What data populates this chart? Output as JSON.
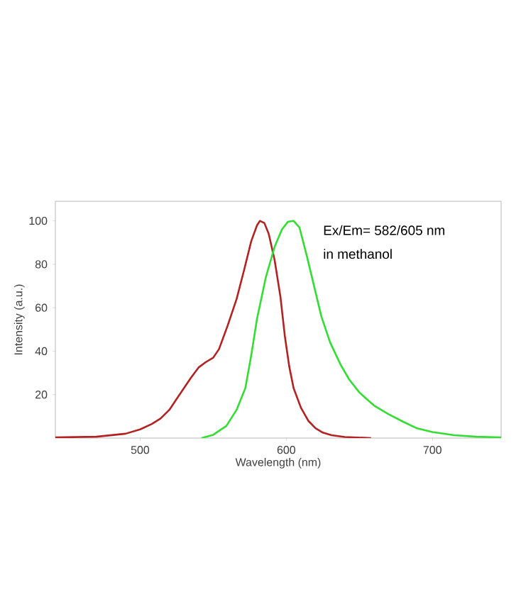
{
  "chart_data": {
    "type": "line",
    "xlabel": "Wavelength (nm)",
    "ylabel": "Intensity (a.u.)",
    "annotations": [
      "Ex/Em= 582/605 nm",
      "in methanol"
    ],
    "xlim": [
      442,
      747
    ],
    "ylim": [
      0,
      109
    ],
    "xticks": [
      500,
      600,
      700
    ],
    "yticks": [
      20,
      40,
      60,
      80,
      100
    ],
    "series": [
      {
        "color": "#b22222",
        "x": [
          442,
          470,
          490,
          500,
          508,
          514,
          520,
          525,
          529,
          535,
          540,
          545,
          550,
          554,
          560,
          566,
          571,
          576,
          580,
          582,
          585,
          588,
          592,
          596,
          599,
          602,
          605,
          610,
          615,
          620,
          625,
          631,
          640,
          658
        ],
        "values": [
          0.3,
          0.6,
          2,
          4,
          6.5,
          9,
          13,
          18,
          22,
          28,
          32.5,
          35,
          37,
          41,
          52,
          64,
          77,
          90.6,
          98,
          100,
          99,
          94,
          82,
          65,
          47,
          33,
          23,
          14,
          8,
          4.5,
          2.5,
          1.3,
          0.5,
          0
        ]
      },
      {
        "color": "#33dd33",
        "x": [
          542,
          550,
          559,
          566,
          572,
          576,
          580,
          586,
          592,
          597,
          601,
          605,
          609,
          614,
          619,
          624,
          630,
          637,
          643,
          650,
          660,
          670,
          680,
          689,
          700,
          715,
          730,
          747
        ],
        "values": [
          0,
          1.5,
          5.6,
          13,
          23,
          38,
          55,
          74,
          88,
          96,
          99.5,
          100,
          97,
          84,
          70,
          56,
          44,
          34,
          27,
          21,
          15,
          11,
          7.5,
          4.6,
          2.8,
          1.3,
          0.6,
          0.3
        ]
      }
    ]
  }
}
